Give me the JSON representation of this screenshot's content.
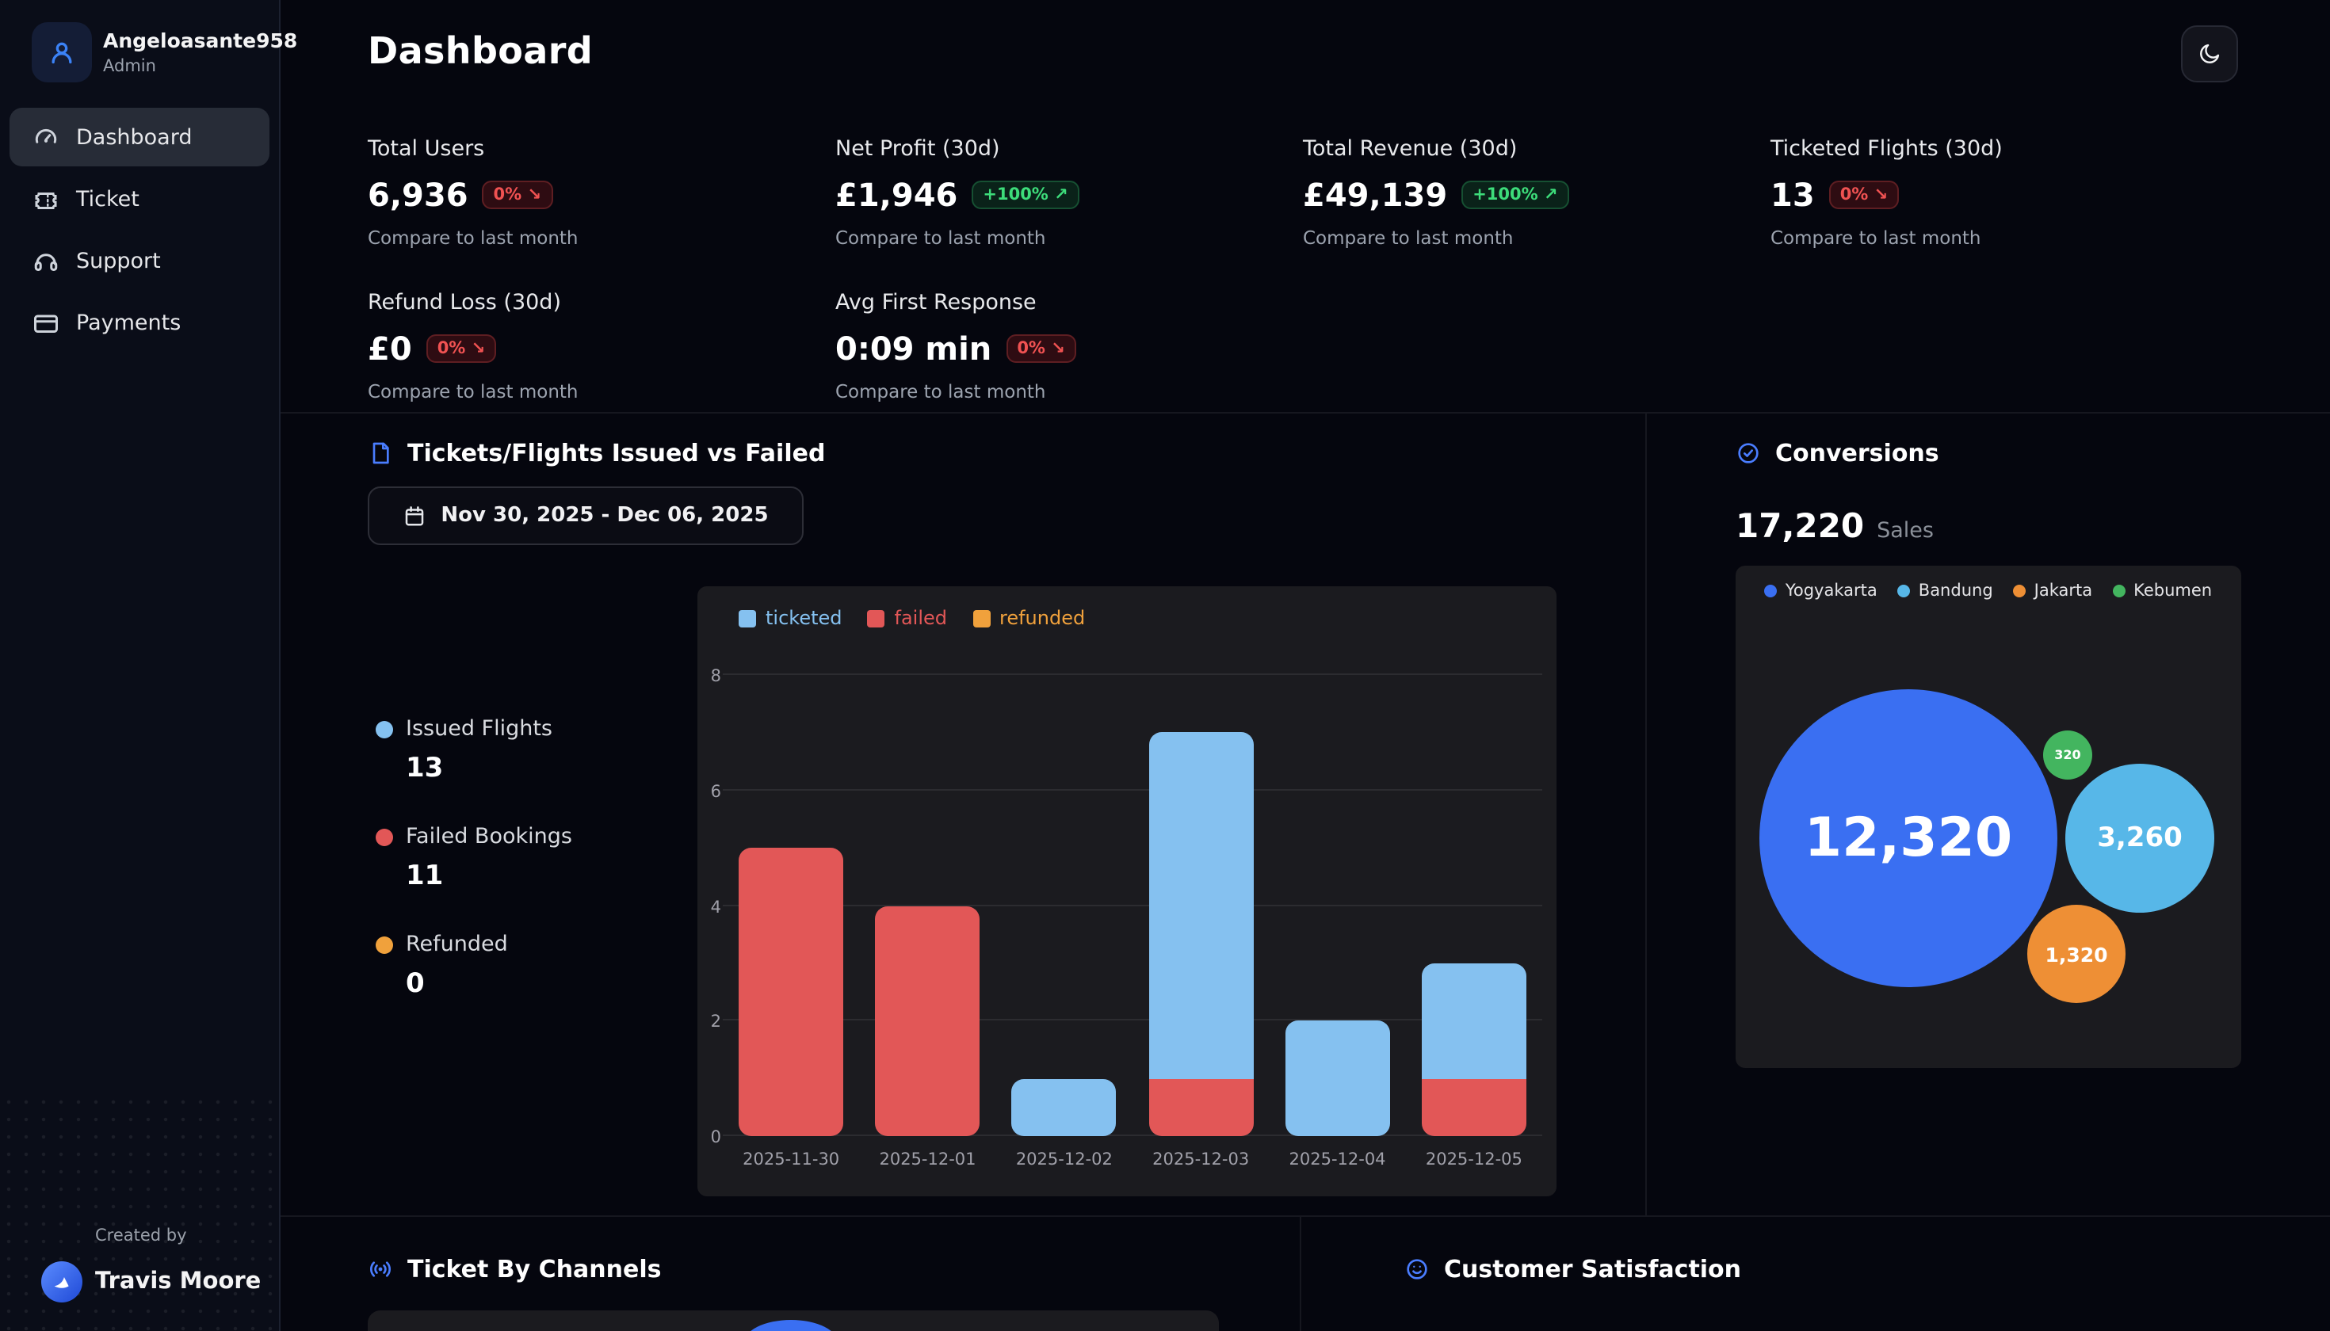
{
  "colors": {
    "accent": "#4a7dff",
    "positive": "#3ddc7a",
    "negative": "#f05252"
  },
  "sidebar": {
    "user": {
      "name": "Angeloasante958",
      "role": "Admin",
      "avatar_icon": "person-icon"
    },
    "items": [
      {
        "label": "Dashboard",
        "icon": "gauge-icon",
        "active": true
      },
      {
        "label": "Ticket",
        "icon": "ticket-icon",
        "active": false
      },
      {
        "label": "Support",
        "icon": "headset-icon",
        "active": false
      },
      {
        "label": "Payments",
        "icon": "credit-card-icon",
        "active": false
      }
    ],
    "footer": {
      "created_by": "Created by",
      "author": "Travis Moore",
      "logo_icon": "bird-logo-icon"
    }
  },
  "header": {
    "title": "Dashboard",
    "theme_toggle_icon": "moon-icon"
  },
  "stats": [
    {
      "label": "Total Users",
      "value": "6,936",
      "badge": "0% ↘",
      "direction": "down",
      "caption": "Compare to last month"
    },
    {
      "label": "Net Profit (30d)",
      "value": "£1,946",
      "badge": "+100% ↗",
      "direction": "up",
      "caption": "Compare to last month"
    },
    {
      "label": "Total Revenue (30d)",
      "value": "£49,139",
      "badge": "+100% ↗",
      "direction": "up",
      "caption": "Compare to last month"
    },
    {
      "label": "Ticketed Flights (30d)",
      "value": "13",
      "badge": "0% ↘",
      "direction": "down",
      "caption": "Compare to last month"
    },
    {
      "label": "Refund Loss (30d)",
      "value": "£0",
      "badge": "0% ↘",
      "direction": "down",
      "caption": "Compare to last month"
    },
    {
      "label": "Avg First Response",
      "value": "0:09 min",
      "badge": "0% ↘",
      "direction": "down",
      "caption": "Compare to last month"
    }
  ],
  "tickets_section": {
    "icon": "ticket-file-icon",
    "title": "Tickets/Flights Issued vs Failed",
    "date_icon": "calendar-icon",
    "date_range": "Nov 30, 2025 - Dec 06, 2025",
    "summary": [
      {
        "label": "Issued Flights",
        "value": "13"
      },
      {
        "label": "Failed Bookings",
        "value": "11"
      },
      {
        "label": "Refunded",
        "value": "0"
      }
    ]
  },
  "conversions_section": {
    "icon": "check-circle-icon",
    "title": "Conversions",
    "total": "17,220",
    "total_label": "Sales"
  },
  "bottom": {
    "channels": {
      "icon": "broadcast-icon",
      "title": "Ticket By Channels"
    },
    "satisfaction": {
      "icon": "smiley-icon",
      "title": "Customer Satisfaction"
    }
  },
  "chart_data": [
    {
      "type": "bar",
      "stacked": true,
      "title": "Tickets/Flights Issued vs Failed",
      "categories": [
        "2025-11-30",
        "2025-12-01",
        "2025-12-02",
        "2025-12-03",
        "2025-12-04",
        "2025-12-05"
      ],
      "series": [
        {
          "name": "ticketed",
          "color": "#85c1f0",
          "values": [
            0,
            0,
            1,
            6,
            2,
            2
          ]
        },
        {
          "name": "failed",
          "color": "#e25757",
          "values": [
            5,
            4,
            0,
            1,
            0,
            1
          ]
        },
        {
          "name": "refunded",
          "color": "#f0a13c",
          "values": [
            0,
            0,
            0,
            0,
            0,
            0
          ]
        }
      ],
      "stack_order_bottom_to_top": [
        "failed",
        "ticketed",
        "refunded"
      ],
      "ylim": [
        0,
        8
      ],
      "yticks": [
        0,
        2,
        4,
        6,
        8
      ],
      "grid": true,
      "legend_position": "top-left"
    },
    {
      "type": "bubble",
      "title": "Conversions",
      "total_sales": 17220,
      "series": [
        {
          "name": "Yogyakarta",
          "value": 12320,
          "display": "12,320",
          "color": "#3a6ff2"
        },
        {
          "name": "Bandung",
          "value": 3260,
          "display": "3,260",
          "color": "#57b7e8"
        },
        {
          "name": "Jakarta",
          "value": 1320,
          "display": "1,320",
          "color": "#ee8f35"
        },
        {
          "name": "Kebumen",
          "value": 320,
          "display": "320",
          "color": "#43b55f"
        }
      ],
      "legend_position": "top"
    }
  ]
}
